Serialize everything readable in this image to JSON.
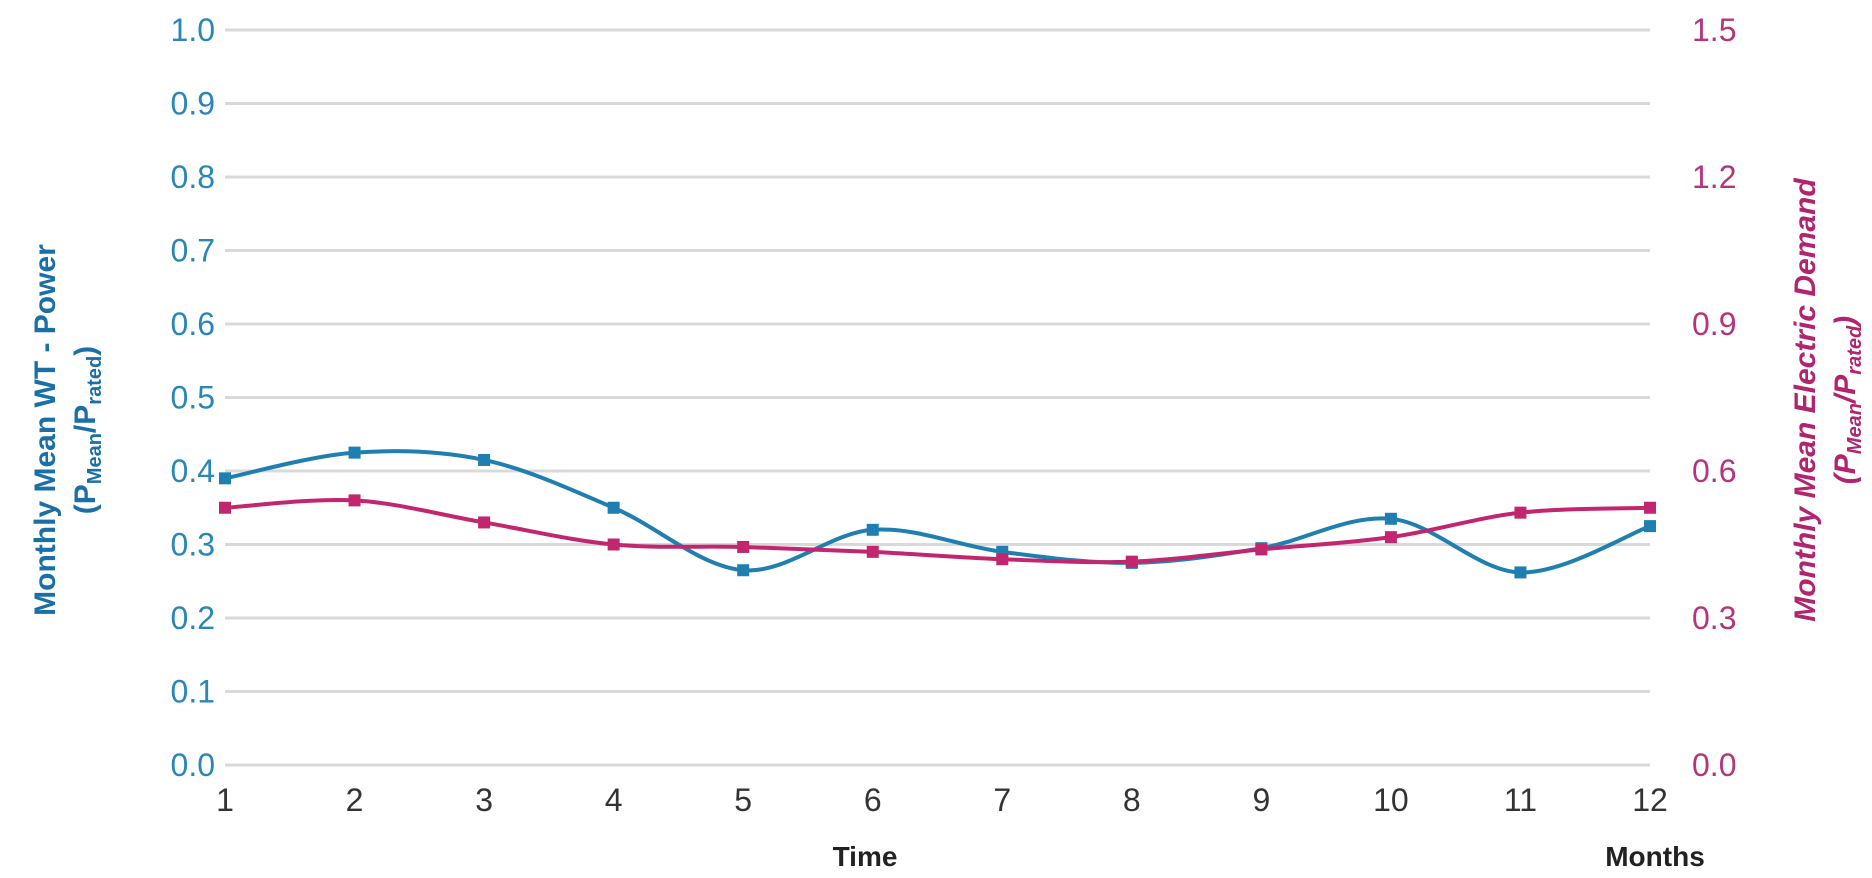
{
  "chart_data": {
    "type": "line",
    "x": [
      1,
      2,
      3,
      4,
      5,
      6,
      7,
      8,
      9,
      10,
      11,
      12
    ],
    "xlabel": "Time",
    "xunit_label": "Months",
    "xlim": [
      1,
      12
    ],
    "grid": true,
    "axes": {
      "left": {
        "label_line1": "Monthly Mean WT - Power",
        "label_line2": {
          "open": "(P",
          "sub1": "Mean",
          "slash": "/P",
          "sub2": "rated",
          "close": ")"
        },
        "ylim": [
          0,
          1.0
        ],
        "ticks": [
          "0.0",
          "0.1",
          "0.2",
          "0.3",
          "0.4",
          "0.5",
          "0.6",
          "0.7",
          "0.8",
          "0.9",
          "1.0"
        ],
        "tick_values": [
          0,
          0.1,
          0.2,
          0.3,
          0.4,
          0.5,
          0.6,
          0.7,
          0.8,
          0.9,
          1.0
        ],
        "color": "#2a86b8"
      },
      "right": {
        "label_line1": "Monthly Mean Electric Demand",
        "label_line2": {
          "open": "(P",
          "sub1": "Mean",
          "slash": "/P",
          "sub2": "rated",
          "close": ")"
        },
        "ylim": [
          0,
          1.5
        ],
        "ticks": [
          "0.0",
          "0.3",
          "0.6",
          "0.9",
          "1.2",
          "1.5"
        ],
        "tick_values": [
          0,
          0.3,
          0.6,
          0.9,
          1.2,
          1.5
        ],
        "color": "#b4357a"
      }
    },
    "series": [
      {
        "axis": "left",
        "color": "#1e7fb0",
        "values": [
          0.39,
          0.425,
          0.415,
          0.35,
          0.265,
          0.32,
          0.29,
          0.275,
          0.295,
          0.335,
          0.262,
          0.325
        ]
      },
      {
        "axis": "right",
        "color": "#c2266f",
        "values": [
          0.525,
          0.54,
          0.495,
          0.45,
          0.445,
          0.435,
          0.42,
          0.415,
          0.44,
          0.465,
          0.515,
          0.525
        ]
      }
    ]
  }
}
